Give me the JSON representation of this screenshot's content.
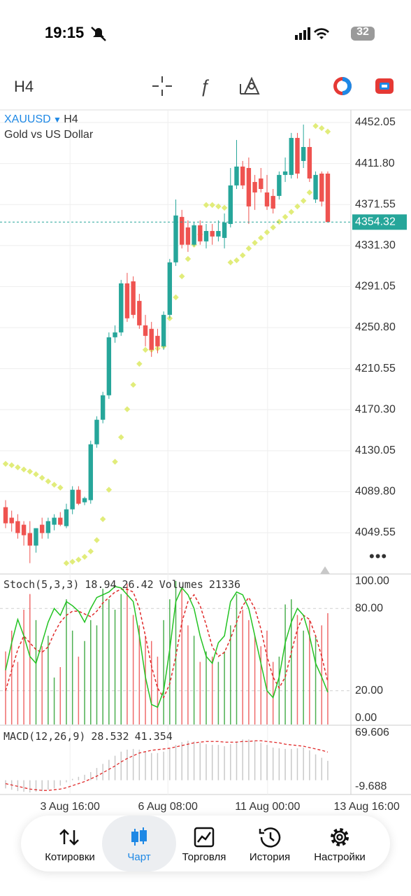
{
  "status_bar": {
    "time": "19:15",
    "battery": "32"
  },
  "toolbar": {
    "timeframe": "H4"
  },
  "chart_data": [
    {
      "type": "candlestick",
      "symbol": "XAUUSD",
      "timeframe": "H4",
      "subtitle": "Gold vs US Dollar",
      "up_color": "#26a69a",
      "down_color": "#ef5350",
      "sar_color": "#e1ec7a",
      "open": [
        4074.6,
        4064.3,
        4060.9,
        4057.4,
        4049.2,
        4036.9,
        4057.4,
        4049.2,
        4057.4,
        4064.3,
        4056.0,
        4072.5,
        4091.7,
        4079.4,
        4081.5,
        4136.3,
        4160.4,
        4184.4,
        4241.3,
        4246.1,
        4294.2,
        4296.2,
        4277.0,
        4253.0,
        4249.6,
        4242.7,
        4232.4,
        4263.3,
        4314.8,
        4359.4,
        4349.1,
        4332.1,
        4351.2,
        4335.4,
        4345.6,
        4340.2,
        4338.8,
        4352.5,
        4390.3,
        4408.8,
        4407.4,
        4393.7,
        4397.1,
        4383.4,
        4380.0,
        4380.0,
        4400.6,
        4400.6,
        4436.9,
        4414.3,
        4428.0,
        4376.5,
        4401.9,
        4401.9
      ],
      "high": [
        4081.5,
        4071.2,
        4067.7,
        4060.9,
        4060.9,
        4054.0,
        4064.3,
        4064.3,
        4067.7,
        4069.8,
        4078.0,
        4095.2,
        4095.2,
        4084.9,
        4139.8,
        4163.8,
        4187.8,
        4246.1,
        4253.0,
        4297.6,
        4304.5,
        4301.1,
        4283.9,
        4263.3,
        4256.4,
        4249.6,
        4266.7,
        4318.2,
        4376.5,
        4366.3,
        4356.0,
        4353.9,
        4356.0,
        4352.5,
        4352.5,
        4356.0,
        4362.8,
        4407.4,
        4434.9,
        4414.3,
        4417.7,
        4400.6,
        4407.4,
        4400.6,
        4386.8,
        4404.0,
        4417.7,
        4441.8,
        4441.8,
        4450.0,
        4436.3,
        4404.0,
        4404.0,
        4404.0
      ],
      "low": [
        4054.0,
        4050.6,
        4043.7,
        4036.9,
        4019.7,
        4030.0,
        4043.7,
        4043.7,
        4051.9,
        4056.0,
        4054.0,
        4067.7,
        4076.6,
        4076.6,
        4078.0,
        4132.9,
        4156.9,
        4180.9,
        4235.9,
        4242.7,
        4256.4,
        4259.9,
        4249.6,
        4232.4,
        4222.1,
        4225.6,
        4229.0,
        4259.9,
        4311.3,
        4328.5,
        4325.1,
        4330.6,
        4332.1,
        4328.5,
        4332.1,
        4335.4,
        4328.5,
        4349.1,
        4386.8,
        4386.8,
        4352.5,
        4366.3,
        4383.4,
        4366.3,
        4362.8,
        4376.5,
        4393.7,
        4397.1,
        4397.1,
        4407.4,
        4393.7,
        4373.1,
        4369.7,
        4353.9
      ],
      "close": [
        4058.8,
        4058.8,
        4049.2,
        4047.1,
        4036.9,
        4054.0,
        4049.2,
        4060.9,
        4064.3,
        4057.4,
        4072.5,
        4091.7,
        4078.0,
        4083.5,
        4136.3,
        4160.4,
        4184.4,
        4241.3,
        4246.1,
        4294.2,
        4259.9,
        4263.3,
        4253.0,
        4242.7,
        4229.0,
        4232.4,
        4263.3,
        4314.8,
        4360.8,
        4332.1,
        4332.1,
        4351.2,
        4335.4,
        4345.6,
        4340.2,
        4345.6,
        4353.9,
        4390.3,
        4408.8,
        4390.3,
        4369.7,
        4383.4,
        4386.8,
        4369.7,
        4367.6,
        4400.6,
        4404.0,
        4436.9,
        4401.9,
        4428.0,
        4397.1,
        4400.6,
        4374.5,
        4354.32
      ],
      "sar": [
        4117.1,
        4115.8,
        4113.7,
        4111.6,
        4109.6,
        4106.9,
        4103.4,
        4100.0,
        4096.6,
        4093.8,
        4019.7,
        4021.1,
        4023.1,
        4025.9,
        4031.3,
        4042.3,
        4062.9,
        4091.7,
        4119.2,
        4143.2,
        4170.7,
        4194.7,
        4215.3,
        4229.0,
        4229.0,
        4230.4,
        4232.4,
        4259.9,
        4280.5,
        4301.1,
        4318.2,
        4332.1,
        4342.2,
        4371.1,
        4371.1,
        4369.7,
        4368.3,
        4314.8,
        4316.8,
        4321.7,
        4328.5,
        4334.0,
        4338.8,
        4344.3,
        4349.1,
        4354.6,
        4359.4,
        4364.3,
        4369.7,
        4375.2,
        4383.4,
        4448.6,
        4446.5,
        4443.1
      ],
      "xlim": [
        -0.92,
        56.8
      ],
      "xticks": [
        {
          "value": 10.6,
          "label": "3 Aug 16:00"
        },
        {
          "value": 26.7,
          "label": "6 Aug 08:00"
        },
        {
          "value": 43.1,
          "label": "11 Aug 00:00"
        },
        {
          "value": 59.4,
          "label": "13 Aug 16:00"
        }
      ],
      "ylim": [
        4009.05,
        4464.4
      ],
      "yticks": [
        4452.05,
        {
          "value": 4411.8,
          "label": "4411.80"
        },
        4371.55,
        {
          "value": 4331.3,
          "label": "4331.30"
        },
        4291.05,
        {
          "value": 4250.8,
          "label": "4250.80"
        },
        4210.55,
        {
          "value": 4170.3,
          "label": "4170.30"
        },
        4130.05,
        {
          "value": 4089.8,
          "label": "4089.80"
        },
        4049.55
      ],
      "grid": true
    },
    {
      "type": "stochastic",
      "title": "Stoch(5,3,3)",
      "k_color": "#22c322",
      "d_color": "#e02a2a",
      "volume_title": "Volumes",
      "k": [
        35,
        55,
        72,
        60,
        45,
        40,
        55,
        70,
        80,
        75,
        85,
        82,
        78,
        70,
        80,
        88,
        90,
        92,
        96,
        95,
        90,
        85,
        60,
        30,
        10,
        8,
        20,
        50,
        85,
        95,
        90,
        80,
        60,
        45,
        40,
        55,
        60,
        85,
        92,
        90,
        80,
        60,
        40,
        20,
        15,
        30,
        55,
        70,
        80,
        75,
        60,
        40,
        30,
        18.94
      ],
      "d": [
        20,
        35,
        50,
        60,
        55,
        50,
        48,
        52,
        62,
        70,
        75,
        78,
        78,
        76,
        74,
        78,
        84,
        88,
        92,
        94,
        94,
        92,
        80,
        60,
        38,
        22,
        15,
        25,
        45,
        70,
        85,
        90,
        82,
        68,
        52,
        45,
        48,
        58,
        70,
        82,
        88,
        80,
        65,
        45,
        30,
        22,
        30,
        48,
        65,
        75,
        72,
        60,
        45,
        26.42
      ],
      "volumes": [
        14000,
        18000,
        12000,
        22000,
        25000,
        20000,
        15000,
        17000,
        9000,
        11000,
        24000,
        18000,
        13000,
        16000,
        20000,
        19000,
        26000,
        24000,
        22000,
        25000,
        27000,
        21000,
        19000,
        17000,
        16000,
        13000,
        20000,
        24000,
        27500,
        26000,
        19000,
        17000,
        12000,
        14000,
        13000,
        12000,
        14000,
        19000,
        25000,
        22000,
        20000,
        17000,
        15000,
        18000,
        12000,
        13000,
        23000,
        24000,
        21000,
        18000,
        20000,
        17000,
        19000,
        21336
      ],
      "ylim": [
        -4.6,
        104.1
      ],
      "yticks": [
        {
          "value": 100,
          "label": "100.00"
        },
        {
          "value": 80,
          "label": "80.00"
        },
        {
          "value": 20,
          "label": "20.00"
        },
        {
          "value": 0,
          "label": "0.00"
        }
      ]
    },
    {
      "type": "macd",
      "title": "MACD(12,26,9)",
      "bar_color": "#c9c9c9",
      "signal_color": "#e02a2a",
      "macd": [
        -12,
        -14,
        -16,
        -17,
        -18,
        -17,
        -16,
        -14,
        -12,
        -8,
        -3,
        2,
        5,
        8,
        12,
        18,
        24,
        30,
        36,
        42,
        45,
        46,
        45,
        42,
        40,
        40,
        42,
        46,
        52,
        56,
        58,
        57,
        55,
        53,
        52,
        52,
        50,
        53,
        57,
        60,
        60,
        58,
        55,
        52,
        48,
        47,
        46,
        46,
        47,
        48,
        44,
        38,
        33,
        28.532
      ],
      "signal": [
        -5,
        -7,
        -9,
        -11,
        -13,
        -14,
        -15,
        -15,
        -14,
        -13,
        -11,
        -8,
        -5,
        -2,
        2,
        6,
        11,
        16,
        21,
        27,
        32,
        36,
        40,
        42,
        44,
        45,
        46,
        47,
        49,
        51,
        53,
        55,
        56,
        57,
        57,
        57,
        56,
        56,
        56,
        57,
        57,
        58,
        58,
        57,
        56,
        55,
        53,
        52,
        51,
        50,
        48,
        46,
        44,
        41.354
      ],
      "ylim": [
        -21.0,
        79.9
      ],
      "yticks": [
        69.606,
        -9.688
      ]
    }
  ],
  "nav": {
    "items": [
      "Котировки",
      "Чарт",
      "Торговля",
      "История",
      "Настройки"
    ]
  }
}
